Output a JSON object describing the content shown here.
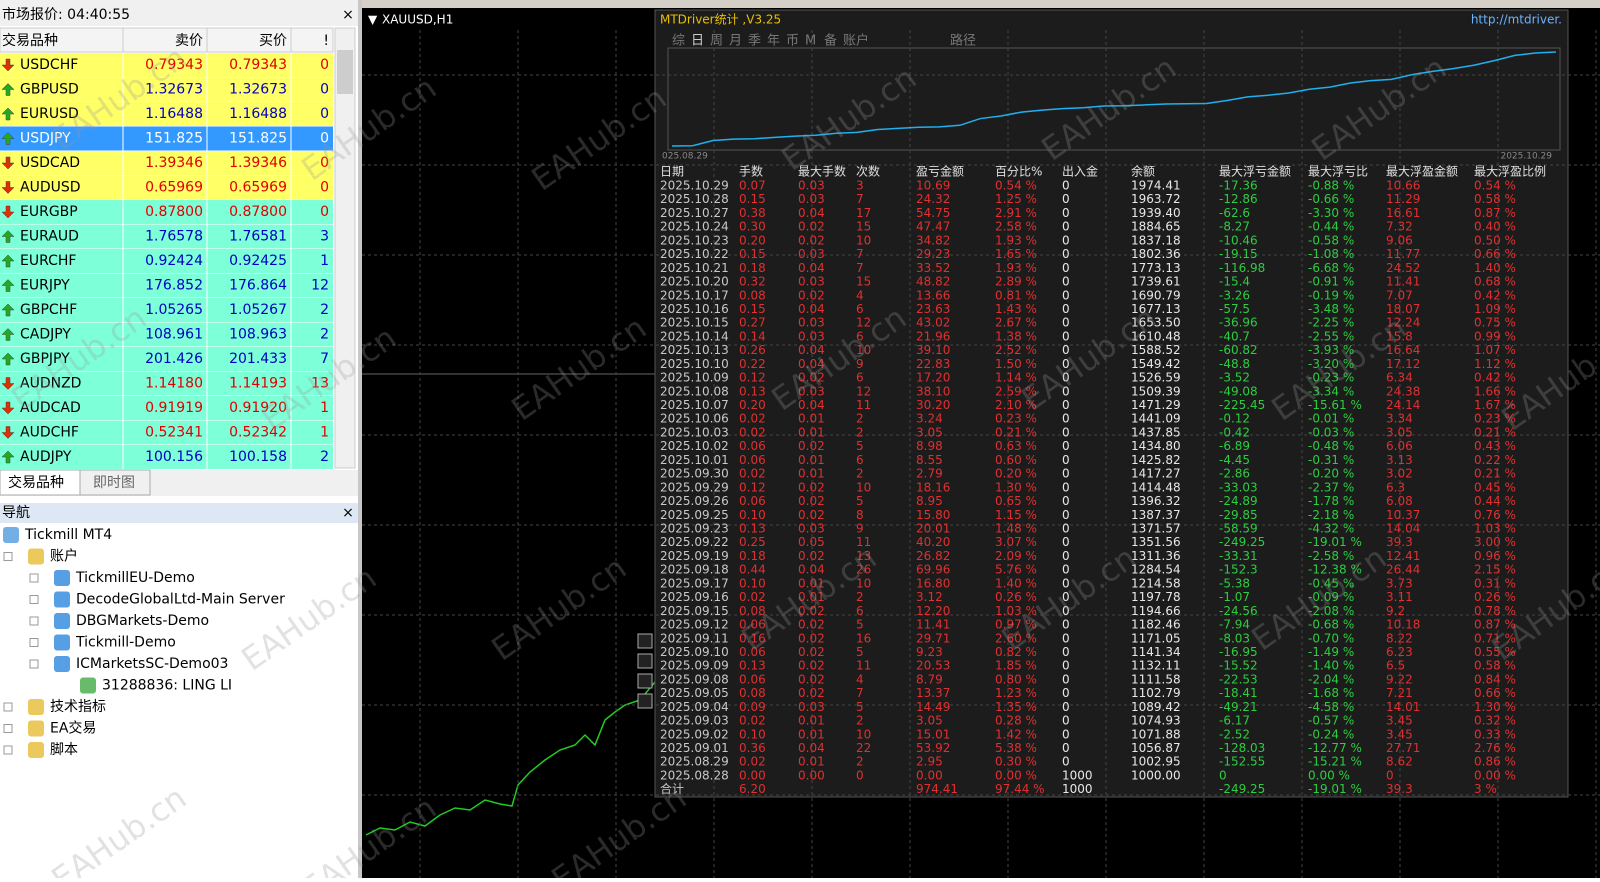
{
  "market_watch": {
    "title": "市场报价: 04:40:55",
    "close": "×",
    "headers": [
      "交易品种",
      "卖价",
      "买价",
      "!"
    ],
    "rows": [
      {
        "symbol": "USDCHF",
        "bid": "0.79343",
        "ask": "0.79343",
        "spread": "0",
        "dir": "down",
        "bg": "#ffff66"
      },
      {
        "symbol": "GBPUSD",
        "bid": "1.32673",
        "ask": "1.32673",
        "spread": "0",
        "dir": "up",
        "bg": "#ffff66"
      },
      {
        "symbol": "EURUSD",
        "bid": "1.16488",
        "ask": "1.16488",
        "spread": "0",
        "dir": "up",
        "bg": "#ffff66"
      },
      {
        "symbol": "USDJPY",
        "bid": "151.825",
        "ask": "151.825",
        "spread": "0",
        "dir": "up",
        "bg": "#3399ff"
      },
      {
        "symbol": "USDCAD",
        "bid": "1.39346",
        "ask": "1.39346",
        "spread": "0",
        "dir": "down",
        "bg": "#ffff66"
      },
      {
        "symbol": "AUDUSD",
        "bid": "0.65969",
        "ask": "0.65969",
        "spread": "0",
        "dir": "down",
        "bg": "#ffff66"
      },
      {
        "symbol": "EURGBP",
        "bid": "0.87800",
        "ask": "0.87800",
        "spread": "0",
        "dir": "down",
        "bg": "#7dffd8"
      },
      {
        "symbol": "EURAUD",
        "bid": "1.76578",
        "ask": "1.76581",
        "spread": "3",
        "dir": "up",
        "bg": "#7dffd8"
      },
      {
        "symbol": "EURCHF",
        "bid": "0.92424",
        "ask": "0.92425",
        "spread": "1",
        "dir": "up",
        "bg": "#7dffd8"
      },
      {
        "symbol": "EURJPY",
        "bid": "176.852",
        "ask": "176.864",
        "spread": "12",
        "dir": "up",
        "bg": "#7dffd8"
      },
      {
        "symbol": "GBPCHF",
        "bid": "1.05265",
        "ask": "1.05267",
        "spread": "2",
        "dir": "up",
        "bg": "#7dffd8"
      },
      {
        "symbol": "CADJPY",
        "bid": "108.961",
        "ask": "108.963",
        "spread": "2",
        "dir": "up",
        "bg": "#7dffd8"
      },
      {
        "symbol": "GBPJPY",
        "bid": "201.426",
        "ask": "201.433",
        "spread": "7",
        "dir": "up",
        "bg": "#7dffd8"
      },
      {
        "symbol": "AUDNZD",
        "bid": "1.14180",
        "ask": "1.14193",
        "spread": "13",
        "dir": "down",
        "bg": "#7dffd8"
      },
      {
        "symbol": "AUDCAD",
        "bid": "0.91919",
        "ask": "0.91920",
        "spread": "1",
        "dir": "down",
        "bg": "#7dffd8"
      },
      {
        "symbol": "AUDCHF",
        "bid": "0.52341",
        "ask": "0.52342",
        "spread": "1",
        "dir": "down",
        "bg": "#7dffd8"
      },
      {
        "symbol": "AUDJPY",
        "bid": "100.156",
        "ask": "100.158",
        "spread": "2",
        "dir": "up",
        "bg": "#7dffd8"
      }
    ],
    "tabs": [
      "交易品种",
      "即时图"
    ]
  },
  "navigator": {
    "title": "导航",
    "close": "×",
    "items": [
      {
        "label": "Tickmill MT4",
        "level": 0
      },
      {
        "label": "账户",
        "level": 1
      },
      {
        "label": "TickmillEU-Demo",
        "level": 2
      },
      {
        "label": "DecodeGlobalLtd-Main Server",
        "level": 2
      },
      {
        "label": "DBGMarkets-Demo",
        "level": 2
      },
      {
        "label": "Tickmill-Demo",
        "level": 2
      },
      {
        "label": "ICMarketsSC-Demo03",
        "level": 2
      },
      {
        "label": "31288836: LING LI",
        "level": 3
      },
      {
        "label": "技术指标",
        "level": 1
      },
      {
        "label": "EA交易",
        "level": 1
      },
      {
        "label": "脚本",
        "level": 1
      }
    ]
  },
  "chart": {
    "title": "XAUUSD,H1"
  },
  "panel": {
    "title": "MTDriver统计 ,V3.25",
    "url": "http://mtdriver.",
    "tabs": [
      "综",
      "日",
      "周",
      "月",
      "季",
      "年",
      "币",
      "M",
      "备",
      "账户"
    ],
    "path_tab": "路径",
    "curve_start": "025.08.29",
    "curve_end": "2025.10.29"
  },
  "table": {
    "headers": [
      "日期",
      "手数",
      "最大手数",
      "次数",
      "盈亏金额",
      "百分比%",
      "出入金",
      "余额",
      "最大浮亏金额",
      "最大浮亏比",
      "最大浮盈金额",
      "最大浮盈比例"
    ],
    "column_colors": [
      "#c8c8c8",
      "#e03030",
      "#e03030",
      "#e03030",
      "#e03030",
      "#e03030",
      "#e8e8e8",
      "#e8e8e8",
      "#2ecc40",
      "#2ecc40",
      "#e03030",
      "#e03030"
    ],
    "rows": [
      [
        "2025.10.29",
        "0.07",
        "0.03",
        "3",
        "10.69",
        "0.54 %",
        "0",
        "1974.41",
        "-17.36",
        "-0.88 %",
        "10.66",
        "0.54 %"
      ],
      [
        "2025.10.28",
        "0.15",
        "0.03",
        "7",
        "24.32",
        "1.25 %",
        "0",
        "1963.72",
        "-12.86",
        "-0.66 %",
        "11.29",
        "0.58 %"
      ],
      [
        "2025.10.27",
        "0.38",
        "0.04",
        "17",
        "54.75",
        "2.91 %",
        "0",
        "1939.40",
        "-62.6",
        "-3.30 %",
        "16.61",
        "0.87 %"
      ],
      [
        "2025.10.24",
        "0.30",
        "0.02",
        "15",
        "47.47",
        "2.58 %",
        "0",
        "1884.65",
        "-8.27",
        "-0.44 %",
        "7.32",
        "0.40 %"
      ],
      [
        "2025.10.23",
        "0.20",
        "0.02",
        "10",
        "34.82",
        "1.93 %",
        "0",
        "1837.18",
        "-10.46",
        "-0.58 %",
        "9.06",
        "0.50 %"
      ],
      [
        "2025.10.22",
        "0.15",
        "0.03",
        "7",
        "29.23",
        "1.65 %",
        "0",
        "1802.36",
        "-19.15",
        "-1.08 %",
        "11.77",
        "0.66 %"
      ],
      [
        "2025.10.21",
        "0.18",
        "0.04",
        "7",
        "33.52",
        "1.93 %",
        "0",
        "1773.13",
        "-116.98",
        "-6.68 %",
        "24.52",
        "1.40 %"
      ],
      [
        "2025.10.20",
        "0.32",
        "0.03",
        "15",
        "48.82",
        "2.89 %",
        "0",
        "1739.61",
        "-15.4",
        "-0.91 %",
        "11.41",
        "0.68 %"
      ],
      [
        "2025.10.17",
        "0.08",
        "0.02",
        "4",
        "13.66",
        "0.81 %",
        "0",
        "1690.79",
        "-3.26",
        "-0.19 %",
        "7.07",
        "0.42 %"
      ],
      [
        "2025.10.16",
        "0.15",
        "0.04",
        "6",
        "23.63",
        "1.43 %",
        "0",
        "1677.13",
        "-57.5",
        "-3.48 %",
        "18.07",
        "1.09 %"
      ],
      [
        "2025.10.15",
        "0.27",
        "0.03",
        "12",
        "43.02",
        "2.67 %",
        "0",
        "1653.50",
        "-36.96",
        "-2.25 %",
        "12.24",
        "0.75 %"
      ],
      [
        "2025.10.14",
        "0.14",
        "0.03",
        "6",
        "21.96",
        "1.38 %",
        "0",
        "1610.48",
        "-40.7",
        "-2.55 %",
        "15.8",
        "0.99 %"
      ],
      [
        "2025.10.13",
        "0.26",
        "0.04",
        "10",
        "39.10",
        "2.52 %",
        "0",
        "1588.52",
        "-60.82",
        "-3.93 %",
        "16.64",
        "1.07 %"
      ],
      [
        "2025.10.10",
        "0.22",
        "0.04",
        "9",
        "22.83",
        "1.50 %",
        "0",
        "1549.42",
        "-48.8",
        "-3.20 %",
        "17.12",
        "1.12 %"
      ],
      [
        "2025.10.09",
        "0.12",
        "0.02",
        "6",
        "17.20",
        "1.14 %",
        "0",
        "1526.59",
        "-3.52",
        "-0.23 %",
        "6.34",
        "0.42 %"
      ],
      [
        "2025.10.08",
        "0.13",
        "0.03",
        "12",
        "38.10",
        "2.59 %",
        "0",
        "1509.39",
        "-49.08",
        "-3.34 %",
        "24.38",
        "1.66 %"
      ],
      [
        "2025.10.07",
        "0.20",
        "0.04",
        "11",
        "30.20",
        "2.10 %",
        "0",
        "1471.29",
        "-225.45",
        "-15.61 %",
        "24.14",
        "1.67 %"
      ],
      [
        "2025.10.06",
        "0.02",
        "0.01",
        "2",
        "3.24",
        "0.23 %",
        "0",
        "1441.09",
        "-0.12",
        "-0.01 %",
        "3.34",
        "0.23 %"
      ],
      [
        "2025.10.03",
        "0.02",
        "0.01",
        "2",
        "3.05",
        "0.21 %",
        "0",
        "1437.85",
        "-0.42",
        "-0.03 %",
        "3.05",
        "0.21 %"
      ],
      [
        "2025.10.02",
        "0.06",
        "0.02",
        "5",
        "8.98",
        "0.63 %",
        "0",
        "1434.80",
        "-6.89",
        "-0.48 %",
        "6.06",
        "0.43 %"
      ],
      [
        "2025.10.01",
        "0.06",
        "0.01",
        "6",
        "8.55",
        "0.60 %",
        "0",
        "1425.82",
        "-4.45",
        "-0.31 %",
        "3.13",
        "0.22 %"
      ],
      [
        "2025.09.30",
        "0.02",
        "0.01",
        "2",
        "2.79",
        "0.20 %",
        "0",
        "1417.27",
        "-2.86",
        "-0.20 %",
        "3.02",
        "0.21 %"
      ],
      [
        "2025.09.29",
        "0.12",
        "0.02",
        "10",
        "18.16",
        "1.30 %",
        "0",
        "1414.48",
        "-33.03",
        "-2.37 %",
        "6.3",
        "0.45 %"
      ],
      [
        "2025.09.26",
        "0.06",
        "0.02",
        "5",
        "8.95",
        "0.65 %",
        "0",
        "1396.32",
        "-24.89",
        "-1.78 %",
        "6.08",
        "0.44 %"
      ],
      [
        "2025.09.25",
        "0.10",
        "0.02",
        "8",
        "15.80",
        "1.15 %",
        "0",
        "1387.37",
        "-29.85",
        "-2.18 %",
        "10.37",
        "0.76 %"
      ],
      [
        "2025.09.23",
        "0.13",
        "0.03",
        "9",
        "20.01",
        "1.48 %",
        "0",
        "1371.57",
        "-58.59",
        "-4.32 %",
        "14.04",
        "1.03 %"
      ],
      [
        "2025.09.22",
        "0.25",
        "0.05",
        "11",
        "40.20",
        "3.07 %",
        "0",
        "1351.56",
        "-249.25",
        "-19.01 %",
        "39.3",
        "3.00 %"
      ],
      [
        "2025.09.19",
        "0.18",
        "0.02",
        "13",
        "26.82",
        "2.09 %",
        "0",
        "1311.36",
        "-33.31",
        "-2.58 %",
        "12.41",
        "0.96 %"
      ],
      [
        "2025.09.18",
        "0.44",
        "0.04",
        "26",
        "69.96",
        "5.76 %",
        "0",
        "1284.54",
        "-152.3",
        "-12.38 %",
        "26.44",
        "2.15 %"
      ],
      [
        "2025.09.17",
        "0.10",
        "0.01",
        "10",
        "16.80",
        "1.40 %",
        "0",
        "1214.58",
        "-5.38",
        "-0.45 %",
        "3.73",
        "0.31 %"
      ],
      [
        "2025.09.16",
        "0.02",
        "0.01",
        "2",
        "3.12",
        "0.26 %",
        "0",
        "1197.78",
        "-1.07",
        "-0.09 %",
        "3.11",
        "0.26 %"
      ],
      [
        "2025.09.15",
        "0.08",
        "0.02",
        "6",
        "12.20",
        "1.03 %",
        "0",
        "1194.66",
        "-24.56",
        "-2.08 %",
        "9.2",
        "0.78 %"
      ],
      [
        "2025.09.12",
        "0.06",
        "0.02",
        "5",
        "11.41",
        "0.97 %",
        "0",
        "1182.46",
        "-7.94",
        "-0.68 %",
        "10.18",
        "0.87 %"
      ],
      [
        "2025.09.11",
        "0.16",
        "0.02",
        "16",
        "29.71",
        "2.60 %",
        "0",
        "1171.05",
        "-8.03",
        "-0.70 %",
        "8.22",
        "0.71 %"
      ],
      [
        "2025.09.10",
        "0.06",
        "0.02",
        "5",
        "9.23",
        "0.82 %",
        "0",
        "1141.34",
        "-16.95",
        "-1.49 %",
        "6.23",
        "0.55 %"
      ],
      [
        "2025.09.09",
        "0.13",
        "0.02",
        "11",
        "20.53",
        "1.85 %",
        "0",
        "1132.11",
        "-15.52",
        "-1.40 %",
        "6.5",
        "0.58 %"
      ],
      [
        "2025.09.08",
        "0.06",
        "0.02",
        "4",
        "8.79",
        "0.80 %",
        "0",
        "1111.58",
        "-22.53",
        "-2.04 %",
        "9.22",
        "0.84 %"
      ],
      [
        "2025.09.05",
        "0.08",
        "0.02",
        "7",
        "13.37",
        "1.23 %",
        "0",
        "1102.79",
        "-18.41",
        "-1.68 %",
        "7.21",
        "0.66 %"
      ],
      [
        "2025.09.04",
        "0.09",
        "0.03",
        "5",
        "14.49",
        "1.35 %",
        "0",
        "1089.42",
        "-49.21",
        "-4.58 %",
        "14.01",
        "1.30 %"
      ],
      [
        "2025.09.03",
        "0.02",
        "0.01",
        "2",
        "3.05",
        "0.28 %",
        "0",
        "1074.93",
        "-6.17",
        "-0.57 %",
        "3.45",
        "0.32 %"
      ],
      [
        "2025.09.02",
        "0.10",
        "0.01",
        "10",
        "15.01",
        "1.42 %",
        "0",
        "1071.88",
        "-2.52",
        "-0.24 %",
        "3.45",
        "0.33 %"
      ],
      [
        "2025.09.01",
        "0.36",
        "0.04",
        "22",
        "53.92",
        "5.38 %",
        "0",
        "1056.87",
        "-128.03",
        "-12.77 %",
        "27.71",
        "2.76 %"
      ],
      [
        "2025.08.29",
        "0.02",
        "0.01",
        "2",
        "2.95",
        "0.30 %",
        "0",
        "1002.95",
        "-152.55",
        "-15.21 %",
        "8.62",
        "0.86 %"
      ],
      [
        "2025.08.28",
        "0.00",
        "0.00",
        "0",
        "0.00",
        "0.00 %",
        "1000",
        "1000.00",
        "0",
        "0.00 %",
        "0",
        "0.00 %"
      ]
    ],
    "total": {
      "0": "合计",
      "1": "6.20",
      "4": "974.41",
      "5": "97.44 %",
      "6": "1000",
      "8": "-249.25",
      "9": "-19.01 %",
      "10": "39.3",
      "11": "3 %"
    }
  },
  "watermark": "EAHub.cn"
}
